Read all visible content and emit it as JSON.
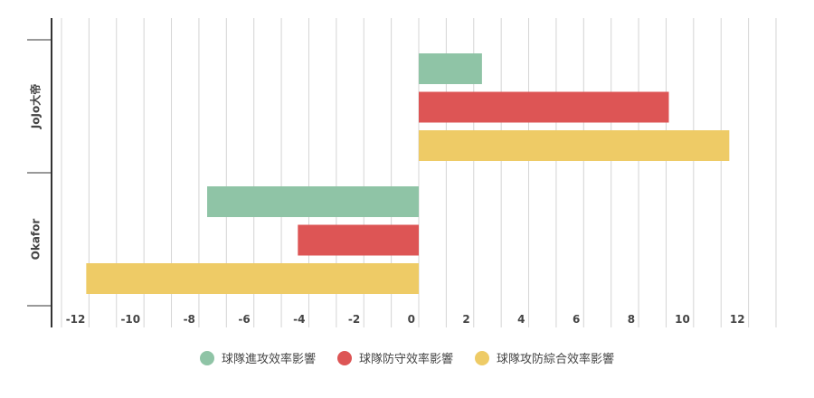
{
  "chart_data": {
    "type": "bar",
    "orientation": "horizontal",
    "categories": [
      "JoJo大帝",
      "Okafor"
    ],
    "series": [
      {
        "name": "球隊進攻效率影響",
        "color": "#8fc4a6",
        "values": [
          2.3,
          -7.7
        ]
      },
      {
        "name": "球隊防守效率影響",
        "color": "#dd5555",
        "values": [
          9.1,
          -4.4
        ]
      },
      {
        "name": "球隊攻防綜合效率影響",
        "color": "#eecb66",
        "values": [
          11.3,
          -12.1
        ]
      }
    ],
    "xlim": [
      -13,
      13
    ],
    "x_ticks": [
      -12,
      -10,
      -8,
      -6,
      -4,
      -2,
      0,
      2,
      4,
      6,
      8,
      10,
      12
    ],
    "grid": true,
    "legend_position": "bottom"
  }
}
